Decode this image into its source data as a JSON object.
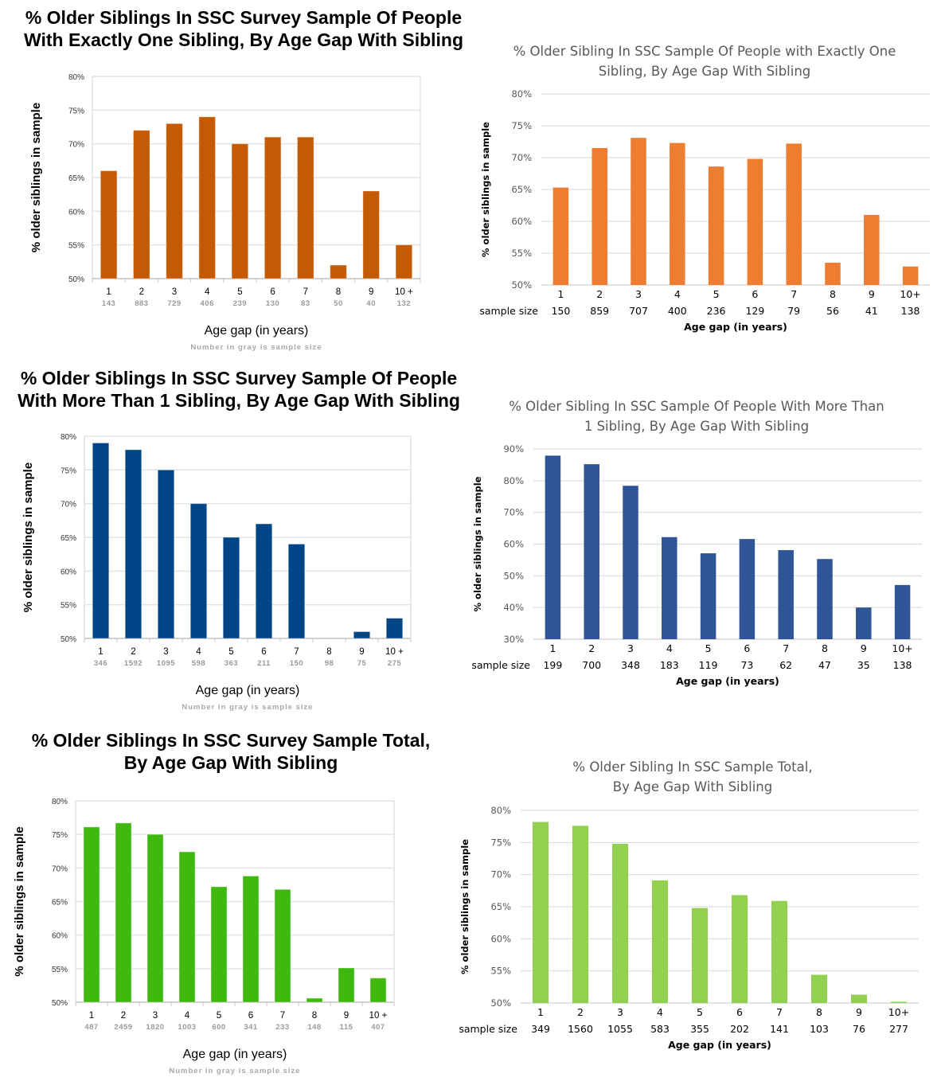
{
  "chart_data": [
    {
      "id": "old-one-sibling",
      "type": "bar",
      "style": "old",
      "title": "% Older Siblings In SSC Survey Sample Of People\nWith Exactly One Sibling, By Age Gap With Sibling",
      "xlabel": "Age gap (in years)",
      "ylabel": "% older siblings in sample",
      "note": "Number in gray is sample size",
      "sample_size_label": "",
      "categories": [
        "1",
        "2",
        "3",
        "4",
        "5",
        "6",
        "7",
        "8",
        "9",
        "10 +"
      ],
      "values": [
        66,
        72,
        73,
        74,
        70,
        71,
        71,
        52,
        63,
        55
      ],
      "sample_sizes": [
        "143",
        "883",
        "729",
        "406",
        "239",
        "130",
        "83",
        "50",
        "40",
        "132"
      ],
      "ylim": [
        50,
        80
      ],
      "yticks": [
        50,
        55,
        60,
        65,
        70,
        75,
        80
      ],
      "ytick_labels": [
        "50%",
        "55%",
        "60%",
        "65%",
        "70%",
        "75%",
        "80%"
      ],
      "grid": true,
      "color": "#c55a05"
    },
    {
      "id": "new-one-sibling",
      "type": "bar",
      "style": "new",
      "title": "% Older Sibling In SSC Sample Of People with Exactly One\nSibling, By Age Gap With Sibling",
      "xlabel": "Age gap (in years)",
      "ylabel": "% older siblings in sample",
      "note": "",
      "sample_size_label": "sample size",
      "categories": [
        "1",
        "2",
        "3",
        "4",
        "5",
        "6",
        "7",
        "8",
        "9",
        "10+"
      ],
      "values": [
        65.3,
        71.5,
        73.1,
        72.3,
        68.6,
        69.8,
        72.2,
        53.5,
        61.0,
        52.9
      ],
      "sample_sizes": [
        "150",
        "859",
        "707",
        "400",
        "236",
        "129",
        "79",
        "56",
        "41",
        "138"
      ],
      "ylim": [
        50,
        80
      ],
      "yticks": [
        50,
        55,
        60,
        65,
        70,
        75,
        80
      ],
      "ytick_labels": [
        "50%",
        "55%",
        "60%",
        "65%",
        "70%",
        "75%",
        "80%"
      ],
      "grid": true,
      "color": "#ed7d31"
    },
    {
      "id": "old-more-siblings",
      "type": "bar",
      "style": "old",
      "title": "% Older Siblings In SSC Survey Sample Of People\nWith More Than 1 Sibling, By Age Gap With Sibling",
      "xlabel": "Age gap (in years)",
      "ylabel": "% older siblings in sample",
      "note": "Number in gray is sample size",
      "sample_size_label": "",
      "categories": [
        "1",
        "2",
        "3",
        "4",
        "5",
        "6",
        "7",
        "8",
        "9",
        "10 +"
      ],
      "values": [
        79,
        78,
        75,
        70,
        65,
        67,
        64,
        50,
        51,
        53
      ],
      "sample_sizes": [
        "346",
        "1592",
        "1095",
        "598",
        "363",
        "211",
        "150",
        "98",
        "75",
        "275"
      ],
      "ylim": [
        50,
        80
      ],
      "yticks": [
        50,
        55,
        60,
        65,
        70,
        75,
        80
      ],
      "ytick_labels": [
        "50%",
        "55%",
        "60%",
        "65%",
        "70%",
        "75%",
        "80%"
      ],
      "grid": true,
      "color": "#004586"
    },
    {
      "id": "new-more-siblings",
      "type": "bar",
      "style": "new",
      "title": "% Older Sibling In SSC Sample Of People With More Than\n1 Sibling, By Age Gap With Sibling",
      "xlabel": "Age gap (in years)",
      "ylabel": "% older siblings in sample",
      "note": "",
      "sample_size_label": "sample size",
      "categories": [
        "1",
        "2",
        "3",
        "4",
        "5",
        "6",
        "7",
        "8",
        "9",
        "10+"
      ],
      "values": [
        87.9,
        85.2,
        78.4,
        62.2,
        57.1,
        61.6,
        58.1,
        55.3,
        40.0,
        47.1
      ],
      "sample_sizes": [
        "199",
        "700",
        "348",
        "183",
        "119",
        "73",
        "62",
        "47",
        "35",
        "138"
      ],
      "ylim": [
        30,
        90
      ],
      "yticks": [
        30,
        40,
        50,
        60,
        70,
        80,
        90
      ],
      "ytick_labels": [
        "30%",
        "40%",
        "50%",
        "60%",
        "70%",
        "80%",
        "90%"
      ],
      "grid": true,
      "color": "#2f5597"
    },
    {
      "id": "old-total",
      "type": "bar",
      "style": "old",
      "title": "% Older Siblings In SSC Survey Sample Total,\nBy Age Gap With Sibling",
      "xlabel": "Age gap (in years)",
      "ylabel": "% older siblings in sample",
      "note": "Number in gray is sample size",
      "sample_size_label": "",
      "categories": [
        "1",
        "2",
        "3",
        "4",
        "5",
        "6",
        "7",
        "8",
        "9",
        "10 +"
      ],
      "values": [
        76.1,
        76.7,
        75.0,
        72.4,
        67.2,
        68.8,
        66.8,
        50.6,
        55.1,
        53.6
      ],
      "sample_sizes": [
        "487",
        "2459",
        "1820",
        "1003",
        "600",
        "341",
        "233",
        "148",
        "115",
        "407"
      ],
      "ylim": [
        50,
        80
      ],
      "yticks": [
        50,
        55,
        60,
        65,
        70,
        75,
        80
      ],
      "ytick_labels": [
        "50%",
        "55%",
        "60%",
        "65%",
        "70%",
        "75%",
        "80%"
      ],
      "grid": true,
      "color": "#3fb90d"
    },
    {
      "id": "new-total",
      "type": "bar",
      "style": "new",
      "title": "% Older Sibling In SSC Sample Total,\nBy Age Gap With Sibling",
      "xlabel": "Age gap (in years)",
      "ylabel": "% older siblings in sample",
      "note": "",
      "sample_size_label": "sample size",
      "categories": [
        "1",
        "2",
        "3",
        "4",
        "5",
        "6",
        "7",
        "8",
        "9",
        "10+"
      ],
      "values": [
        78.2,
        77.6,
        74.8,
        69.1,
        64.8,
        66.8,
        65.9,
        54.4,
        51.3,
        50.2
      ],
      "sample_sizes": [
        "349",
        "1560",
        "1055",
        "583",
        "355",
        "202",
        "141",
        "103",
        "76",
        "277"
      ],
      "ylim": [
        50,
        80
      ],
      "yticks": [
        50,
        55,
        60,
        65,
        70,
        75,
        80
      ],
      "ytick_labels": [
        "50%",
        "55%",
        "60%",
        "65%",
        "70%",
        "75%",
        "80%"
      ],
      "grid": true,
      "color": "#92d050"
    }
  ]
}
